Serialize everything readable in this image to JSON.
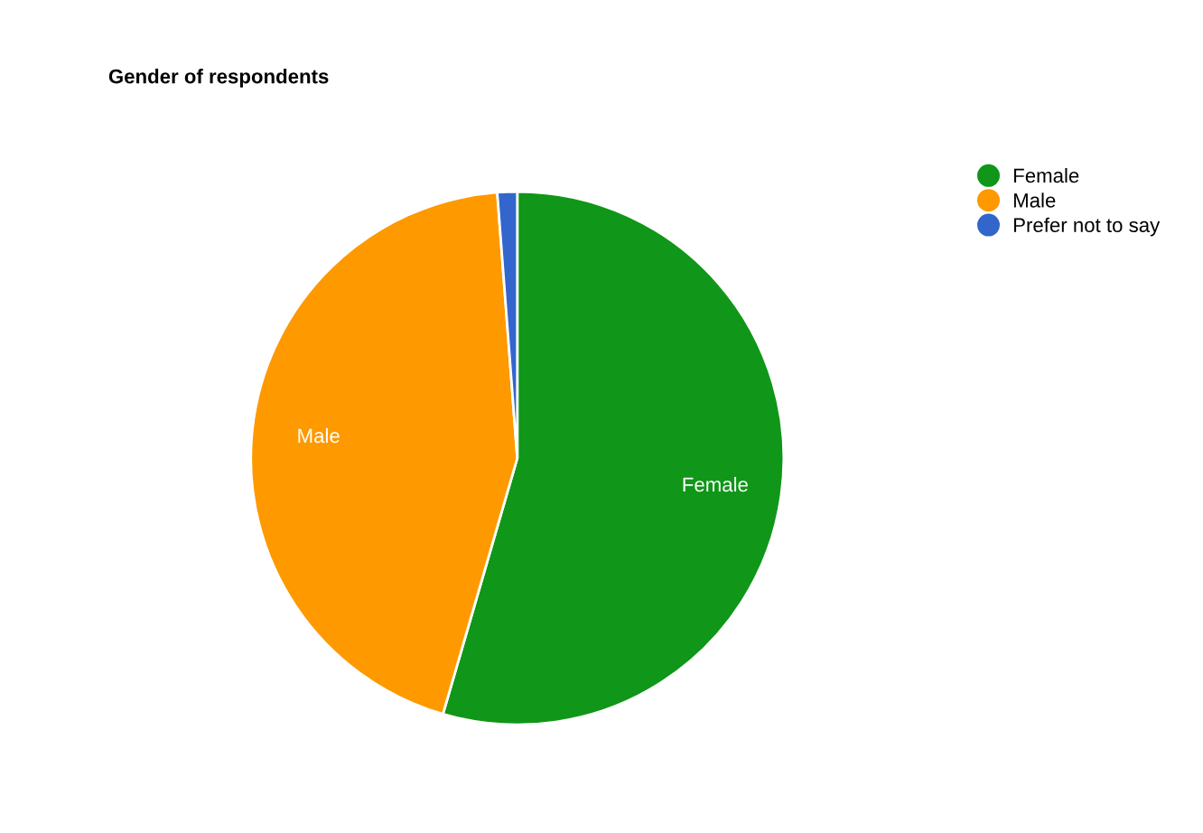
{
  "chart_data": {
    "type": "pie",
    "title": "Gender of respondents",
    "categories": [
      "Female",
      "Male",
      "Prefer not to say"
    ],
    "values": [
      54.5,
      44.3,
      1.2
    ],
    "colors": [
      "#109618",
      "#ff9900",
      "#3366cc"
    ],
    "value_labels": [
      "Female",
      "Male",
      null
    ],
    "legend": "right"
  }
}
